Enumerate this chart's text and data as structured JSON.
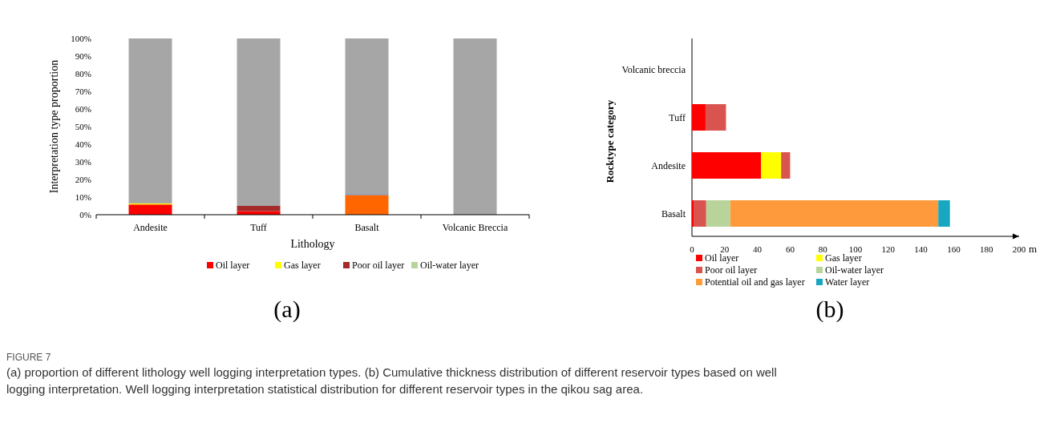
{
  "chart_data": [
    {
      "type": "bar",
      "title": "(a)",
      "stacked": true,
      "xlabel": "Lithology",
      "ylabel": "Interpretation type proportion",
      "categories": [
        "Andesite",
        "Tuff",
        "Basalt",
        "Volcanic Breccia"
      ],
      "ylim": [
        0,
        100
      ],
      "yticks": [
        {
          "value": 0,
          "label": "0%"
        },
        {
          "value": 10,
          "label": "10%"
        },
        {
          "value": 20,
          "label": "20%"
        },
        {
          "value": 30,
          "label": "30%"
        },
        {
          "value": 40,
          "label": "40%"
        },
        {
          "value": 50,
          "label": "50%"
        },
        {
          "value": 60,
          "label": "60%"
        },
        {
          "value": 70,
          "label": "70%"
        },
        {
          "value": 80,
          "label": "80%"
        },
        {
          "value": 90,
          "label": "90%"
        },
        {
          "value": 100,
          "label": "100%"
        }
      ],
      "legend": "bottom",
      "series": [
        {
          "name": "Oil layer",
          "color": "#ff0000",
          "values": [
            5.8,
            2,
            0,
            0
          ]
        },
        {
          "name": "Gas layer",
          "color": "#ffff00",
          "values": [
            0.6,
            0,
            0,
            0
          ]
        },
        {
          "name": "Poor oil layer",
          "color": "#a52a2a",
          "values": [
            0,
            3,
            0,
            0
          ]
        },
        {
          "name": "Oil-water layer",
          "color": "#b8d49a",
          "values": [
            0,
            0,
            0,
            0
          ]
        },
        {
          "color": "#ff6600",
          "values": [
            0,
            0,
            11.2,
            0
          ]
        },
        {
          "color": "#4f81bd",
          "values": [
            0,
            0,
            0.5,
            0
          ]
        },
        {
          "color": "#a6a6a6",
          "values": [
            93.6,
            95,
            88.3,
            100
          ]
        }
      ],
      "annotations": [
        "FIGURE 7",
        "(a) proportion of different lithology well logging interpretation types. (b) Cumulative thickness distribution of different reservoir types based on well logging interpretation. Well logging interpretation statistical distribution for different reservoir types in the qikou sag area."
      ]
    },
    {
      "type": "bar",
      "title": "(b)",
      "stacked": true,
      "orientation": "horizontal",
      "xlabel": "m",
      "ylabel": "Rocktype category",
      "categories": [
        "Volcanic breccia",
        "Tuff",
        "Andesite",
        "Basalt"
      ],
      "xlim": [
        0,
        200
      ],
      "xticks": [
        0,
        20,
        40,
        60,
        80,
        100,
        120,
        140,
        160,
        180,
        200
      ],
      "legend": "bottom",
      "series": [
        {
          "name": "Oil layer",
          "color": "#ff0000",
          "values": [
            0,
            8.3,
            42.3,
            1
          ]
        },
        {
          "name": "Gas layer",
          "color": "#ffff00",
          "values": [
            0,
            0,
            12.2,
            0
          ]
        },
        {
          "name": "Poor oil layer",
          "color": "#d9534f",
          "values": [
            0,
            12.5,
            5.5,
            7.7
          ]
        },
        {
          "name": "Oil-water layer",
          "color": "#b8d49a",
          "values": [
            0,
            0,
            0,
            14.7
          ]
        },
        {
          "name": "Potential oil and gas layer",
          "color": "#ff9a3c",
          "values": [
            0,
            0,
            0,
            127.2
          ]
        },
        {
          "name": "Water layer",
          "color": "#17a7c0",
          "values": [
            0,
            0,
            0,
            7.1
          ]
        }
      ]
    }
  ]
}
